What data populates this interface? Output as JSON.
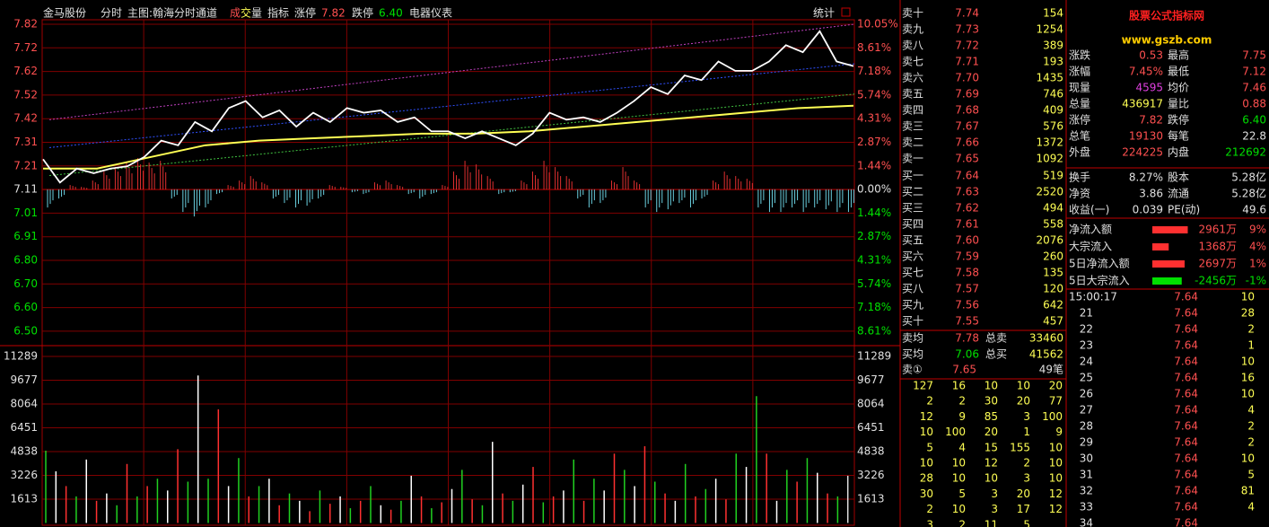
{
  "header": {
    "stock": "金马股份",
    "mode": "分时",
    "main": "主图:翰海分时通道",
    "vol_a": "成",
    "vol_b": "交",
    "vol_c": "量",
    "indicator": "指标",
    "limit_up_label": "涨停",
    "limit_up": "7.82",
    "limit_down_label": "跌停",
    "limit_down": "6.40",
    "sector": "电器仪表",
    "stats": "统计"
  },
  "price_axis": {
    "left": [
      "7.82",
      "7.72",
      "7.62",
      "7.52",
      "7.42",
      "7.31",
      "7.21",
      "7.11",
      "7.01",
      "6.91",
      "6.80",
      "6.70",
      "6.60",
      "6.50"
    ],
    "right": [
      "10.05%",
      "8.61%",
      "7.18%",
      "5.74%",
      "4.31%",
      "2.87%",
      "1.44%",
      "0.00%",
      "1.44%",
      "2.87%",
      "4.31%",
      "5.74%",
      "7.18%",
      "8.61%"
    ]
  },
  "volume_axis": [
    "11289",
    "9677",
    "8064",
    "6451",
    "4838",
    "3226",
    "1613"
  ],
  "price": [
    7.24,
    7.14,
    7.2,
    7.18,
    7.2,
    7.21,
    7.25,
    7.32,
    7.3,
    7.4,
    7.36,
    7.46,
    7.49,
    7.42,
    7.45,
    7.38,
    7.44,
    7.4,
    7.46,
    7.44,
    7.45,
    7.4,
    7.42,
    7.36,
    7.36,
    7.33,
    7.36,
    7.33,
    7.3,
    7.35,
    7.44,
    7.41,
    7.42,
    7.4,
    7.44,
    7.49,
    7.55,
    7.52,
    7.6,
    7.58,
    7.66,
    7.62,
    7.62,
    7.66,
    7.73,
    7.7,
    7.79,
    7.66,
    7.64
  ],
  "average": [
    7.2,
    7.2,
    7.25,
    7.3,
    7.32,
    7.33,
    7.34,
    7.35,
    7.35,
    7.36,
    7.38,
    7.4,
    7.42,
    7.44,
    7.46,
    7.47
  ],
  "channel": [
    {
      "color": "#c040c0",
      "from": 7.41,
      "to": 7.82
    },
    {
      "color": "#3050ff",
      "from": 7.29,
      "to": 7.65
    },
    {
      "color": "#40c040",
      "from": 7.17,
      "to": 7.52
    }
  ],
  "histogram": [
    -20,
    -10,
    5,
    3,
    10,
    20,
    25,
    30,
    35,
    30,
    32,
    -10,
    -25,
    -30,
    -20,
    -5,
    5,
    10,
    15,
    8,
    -10,
    -15,
    -20,
    -18,
    -10,
    5,
    3,
    -3,
    -5,
    8,
    10,
    5,
    -5,
    -10,
    -5,
    5,
    20,
    32,
    28,
    15,
    -5,
    -3,
    10,
    20,
    32,
    25,
    15,
    -10,
    -20,
    -15,
    10,
    25,
    10,
    -20,
    -25,
    -22,
    -15,
    -20,
    -10,
    10,
    20,
    15,
    12,
    -20,
    -25,
    -25,
    -20,
    -25,
    -20,
    -22,
    -25,
    -25
  ],
  "volume": [
    4900,
    3500,
    2500,
    1800,
    4300,
    1500,
    2000,
    1200,
    4000,
    1800,
    2500,
    3000,
    2200,
    5000,
    2800,
    10000,
    3000,
    7700,
    2500,
    4400,
    1800,
    2500,
    3000,
    1200,
    2000,
    1500,
    800,
    2200,
    1300,
    1800,
    1000,
    1500,
    2500,
    1200,
    900,
    1500,
    3200,
    1800,
    1000,
    1400,
    2300,
    3600,
    1600,
    1200,
    5500,
    2000,
    1500,
    2600,
    3800,
    1400,
    1800,
    2200,
    4300,
    1500,
    3000,
    2200,
    4700,
    3600,
    2500,
    5200,
    2800,
    2000,
    1500,
    4000,
    1800,
    2300,
    3000,
    1600,
    4700,
    3800,
    8600,
    4700,
    1500,
    3600,
    2800,
    4400,
    3400,
    2000,
    1800,
    3200
  ],
  "volume_colors": "gwrgwrwgrgrgwrgwgrwgrgwrgwrgrwgrgwrgwrgrwgrgwrgwrgrwgrgwrgwrgrwgrgwrgwgrwgrgwrg",
  "order_book": [
    [
      "卖十",
      "7.74",
      "154"
    ],
    [
      "卖九",
      "7.73",
      "1254"
    ],
    [
      "卖八",
      "7.72",
      "389"
    ],
    [
      "卖七",
      "7.71",
      "193"
    ],
    [
      "卖六",
      "7.70",
      "1435"
    ],
    [
      "卖五",
      "7.69",
      "746"
    ],
    [
      "卖四",
      "7.68",
      "409"
    ],
    [
      "卖三",
      "7.67",
      "576"
    ],
    [
      "卖二",
      "7.66",
      "1372"
    ],
    [
      "卖一",
      "7.65",
      "1092"
    ],
    [
      "买一",
      "7.64",
      "519"
    ],
    [
      "买二",
      "7.63",
      "2520"
    ],
    [
      "买三",
      "7.62",
      "494"
    ],
    [
      "买四",
      "7.61",
      "558"
    ],
    [
      "买五",
      "7.60",
      "2076"
    ],
    [
      "买六",
      "7.59",
      "260"
    ],
    [
      "买七",
      "7.58",
      "135"
    ],
    [
      "买八",
      "7.57",
      "120"
    ],
    [
      "买九",
      "7.56",
      "642"
    ],
    [
      "买十",
      "7.55",
      "457"
    ]
  ],
  "book_summary": [
    [
      "卖均",
      "7.78",
      "总卖",
      "33460"
    ],
    [
      "买均",
      "7.06",
      "总买",
      "41562"
    ]
  ],
  "queue_head": [
    "卖①",
    "7.65",
    "49笔"
  ],
  "queue": [
    [
      "127",
      "16",
      "10",
      "10",
      "20"
    ],
    [
      "2",
      "2",
      "30",
      "20",
      "77"
    ],
    [
      "12",
      "9",
      "85",
      "3",
      "100"
    ],
    [
      "10",
      "100",
      "20",
      "1",
      "9"
    ],
    [
      "5",
      "4",
      "15",
      "155",
      "10"
    ],
    [
      "10",
      "10",
      "12",
      "2",
      "10"
    ],
    [
      "28",
      "10",
      "10",
      "3",
      "10"
    ],
    [
      "30",
      "5",
      "3",
      "20",
      "12"
    ],
    [
      "2",
      "10",
      "3",
      "17",
      "12"
    ],
    [
      "3",
      "2",
      "11",
      "5"
    ]
  ],
  "logo": {
    "name": "股票公式指标网",
    "url": "www.gszb.com"
  },
  "quote": [
    [
      "涨跌",
      "0.53",
      "最高",
      "7.75"
    ],
    [
      "涨幅",
      "7.45%",
      "最低",
      "7.12"
    ],
    [
      "现量",
      "4595",
      "均价",
      "7.46"
    ],
    [
      "总量",
      "436917",
      "量比",
      "0.88"
    ],
    [
      "涨停",
      "7.82",
      "跌停",
      "6.40"
    ],
    [
      "总笔",
      "19130",
      "每笔",
      "22.8"
    ],
    [
      "外盘",
      "224225",
      "内盘",
      "212692"
    ]
  ],
  "finance": [
    [
      "换手",
      "8.27%",
      "股本",
      "5.28亿"
    ],
    [
      "净资",
      "3.86",
      "流通",
      "5.28亿"
    ],
    [
      "收益(一)",
      "0.039",
      "PE(动)",
      "49.6"
    ]
  ],
  "flows": [
    {
      "label": "净流入额",
      "amount": 2961,
      "amount_label": "2961万",
      "pct": "9%"
    },
    {
      "label": "大宗流入",
      "amount": 1368,
      "amount_label": "1368万",
      "pct": "4%"
    },
    {
      "label": "5日净流入额",
      "amount": 2697,
      "amount_label": "2697万",
      "pct": "1%"
    },
    {
      "label": "5日大宗流入",
      "amount": -2456,
      "amount_label": "-2456万",
      "pct": "-1%"
    }
  ],
  "ticks": [
    [
      "15:00:17",
      "7.64",
      "10"
    ],
    [
      "21",
      "7.64",
      "28"
    ],
    [
      "22",
      "7.64",
      "2"
    ],
    [
      "23",
      "7.64",
      "1"
    ],
    [
      "24",
      "7.64",
      "10"
    ],
    [
      "25",
      "7.64",
      "16"
    ],
    [
      "26",
      "7.64",
      "10"
    ],
    [
      "27",
      "7.64",
      "4"
    ],
    [
      "28",
      "7.64",
      "2"
    ],
    [
      "29",
      "7.64",
      "2"
    ],
    [
      "30",
      "7.64",
      "10"
    ],
    [
      "31",
      "7.64",
      "5"
    ],
    [
      "32",
      "7.64",
      "81"
    ],
    [
      "33",
      "7.64",
      "4"
    ],
    [
      "34",
      "7.64",
      ""
    ]
  ]
}
